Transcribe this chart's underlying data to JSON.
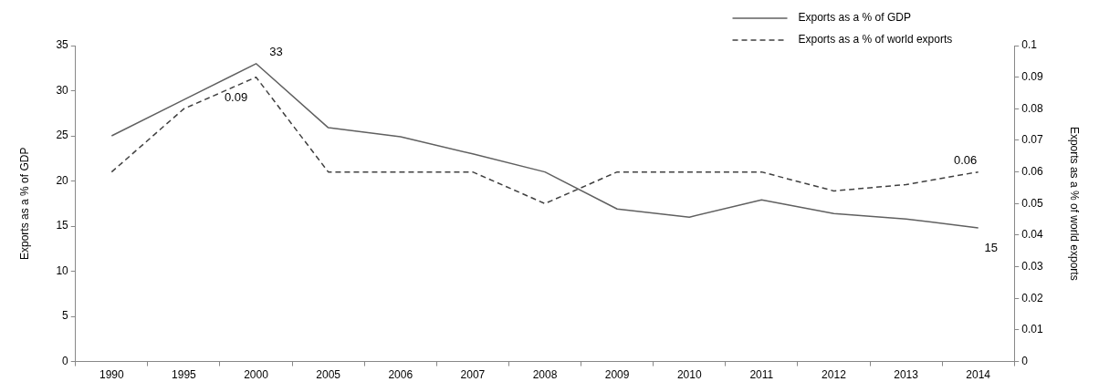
{
  "chart_data": {
    "type": "line",
    "categories": [
      "1990",
      "1995",
      "2000",
      "2005",
      "2006",
      "2007",
      "2008",
      "2009",
      "2010",
      "2011",
      "2012",
      "2013",
      "2014"
    ],
    "ylabel": "Exports as a % of GDP",
    "y2label": "Exports as a % of world exports",
    "ylim": [
      0,
      35
    ],
    "yticks": [
      0,
      5,
      10,
      15,
      20,
      25,
      30,
      35
    ],
    "y2lim": [
      0,
      0.1
    ],
    "y2ticks": [
      0,
      0.01,
      0.02,
      0.03,
      0.04,
      0.05,
      0.06,
      0.07,
      0.08,
      0.09,
      0.1
    ],
    "grid": false,
    "legend": "top right",
    "marker": "none",
    "series": [
      {
        "name": "Exports as a % of GDP",
        "color": "#606060",
        "line_style": "solid",
        "values": [
          25,
          29,
          33,
          25.9,
          24.9,
          23,
          21,
          16.9,
          16,
          17.9,
          16.4,
          15.8,
          14.8
        ],
        "value_labels": [
          null,
          null,
          "33",
          null,
          null,
          null,
          null,
          null,
          null,
          null,
          null,
          null,
          "15"
        ]
      },
      {
        "name": "Exports as a % of world exports",
        "color": "#404040",
        "line_style": "dashed",
        "axis": "y2",
        "values": [
          0.06,
          0.08,
          0.09,
          0.06,
          0.06,
          0.06,
          0.05,
          0.06,
          0.06,
          0.06,
          0.054,
          0.056,
          0.06
        ],
        "value_labels": [
          null,
          null,
          "0.09",
          null,
          null,
          null,
          null,
          null,
          null,
          null,
          null,
          null,
          "0.06"
        ]
      }
    ]
  }
}
